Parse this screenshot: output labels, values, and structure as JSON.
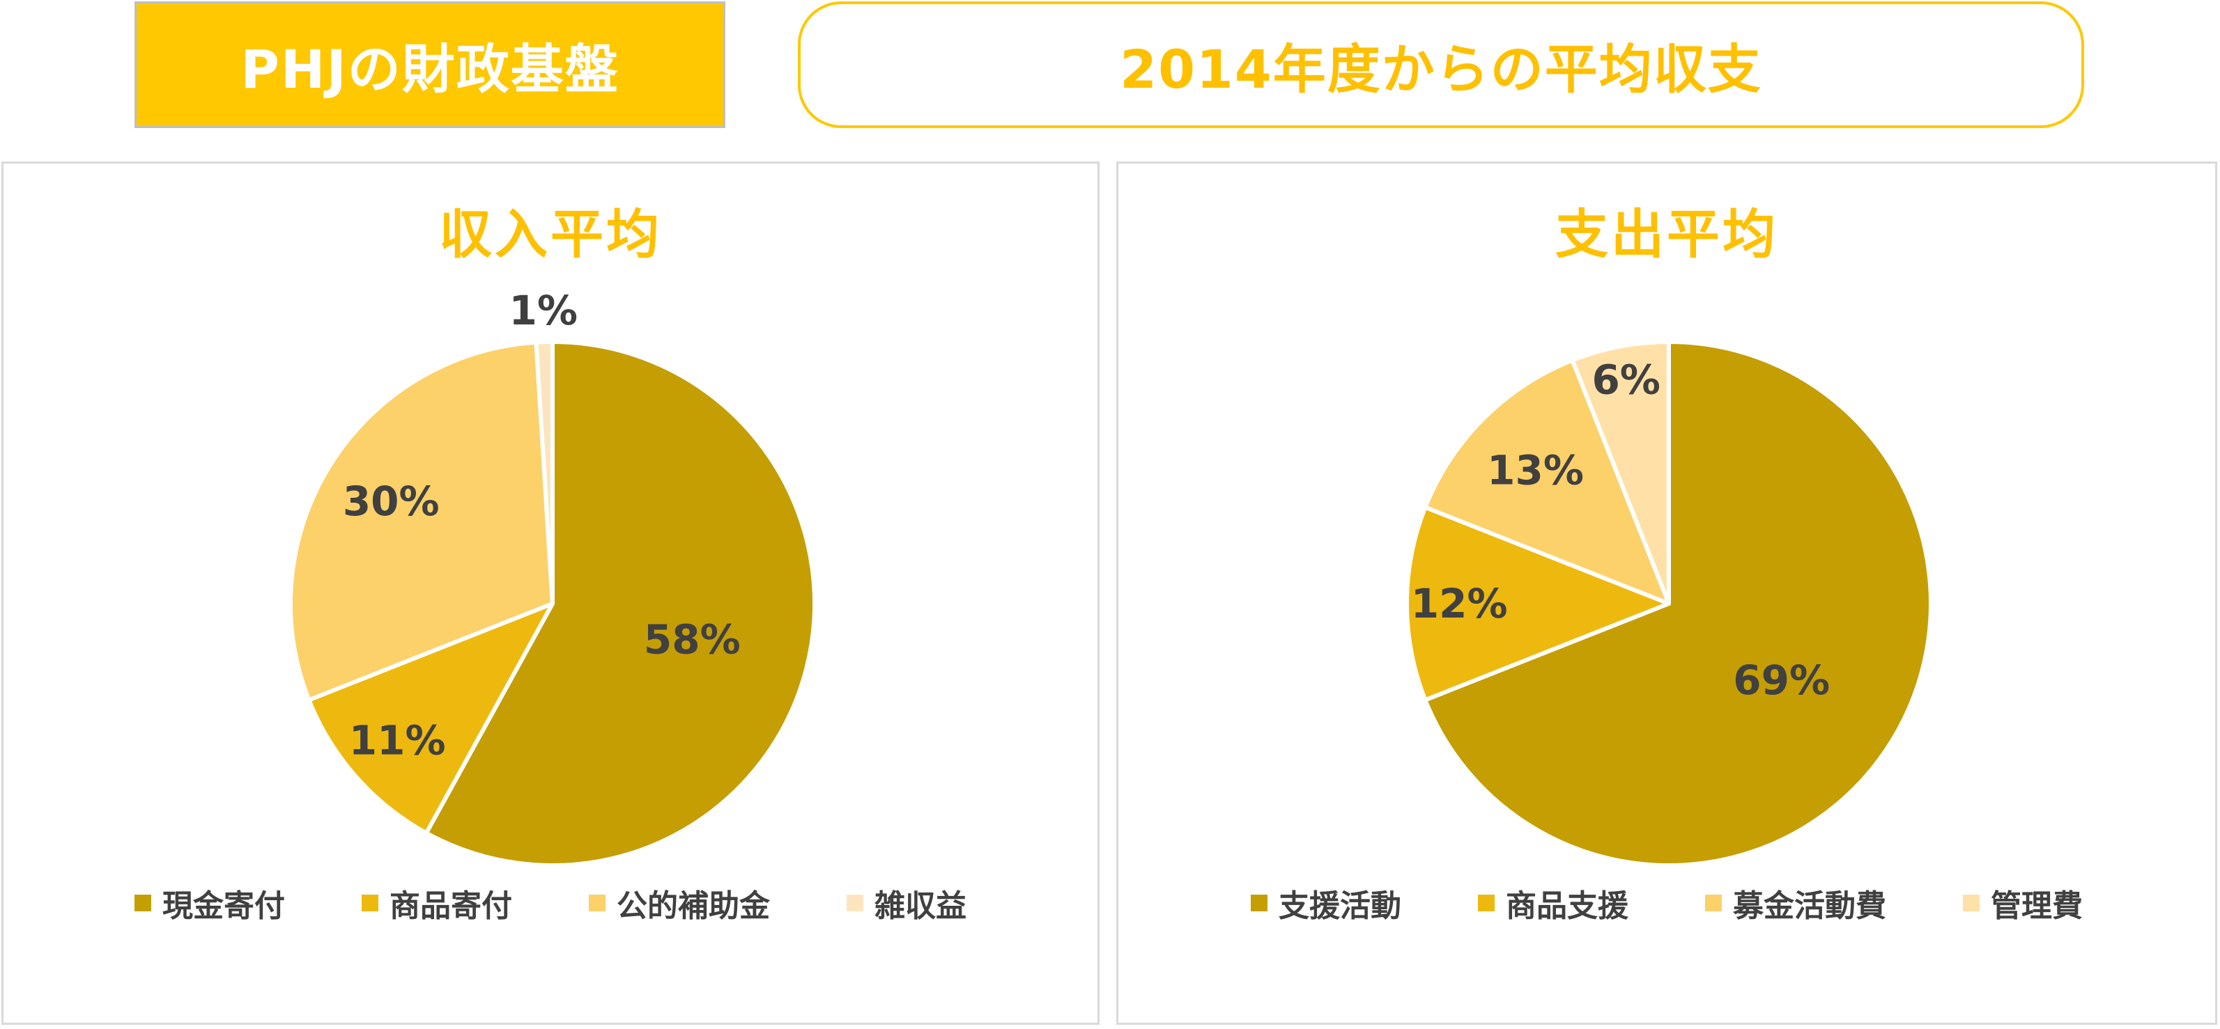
{
  "header": {
    "left_title": "PHJの財政基盤",
    "right_title": "2014年度からの平均収支"
  },
  "colors": {
    "accent": "#FFC800",
    "title_text": "#FFC000"
  },
  "chart_data": [
    {
      "type": "pie",
      "title": "収入平均",
      "categories": [
        "現金寄付",
        "商品寄付",
        "公的補助金",
        "雑収益"
      ],
      "values": [
        58,
        11,
        30,
        1
      ],
      "labels": [
        "58%",
        "11%",
        "30%",
        "1%"
      ],
      "colors": [
        "#C59E04",
        "#EEB90E",
        "#FCD16A",
        "#FCE5BE"
      ],
      "legend_position": "bottom"
    },
    {
      "type": "pie",
      "title": "支出平均",
      "categories": [
        "支援活動",
        "商品支援",
        "募金活動費",
        "管理費"
      ],
      "values": [
        69,
        12,
        13,
        6
      ],
      "labels": [
        "69%",
        "12%",
        "13%",
        "6%"
      ],
      "colors": [
        "#C59E04",
        "#EEB90E",
        "#FCD16A",
        "#FFE1A8"
      ],
      "legend_position": "bottom"
    }
  ]
}
